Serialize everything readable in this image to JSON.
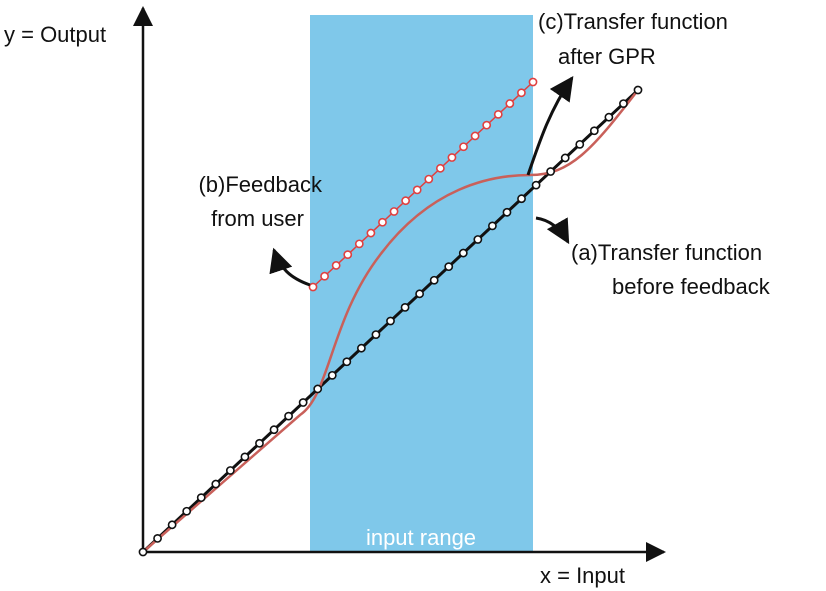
{
  "axes": {
    "y_label": "y = Output",
    "x_label": "x = Input"
  },
  "region": {
    "label": "input range"
  },
  "annotations": {
    "a": {
      "lines": [
        "(a)Transfer function",
        "before feedback"
      ]
    },
    "b": {
      "lines": [
        "(b)Feedback",
        "from user"
      ]
    },
    "c": {
      "lines": [
        "(c)Transfer function",
        "after GPR"
      ]
    }
  }
}
